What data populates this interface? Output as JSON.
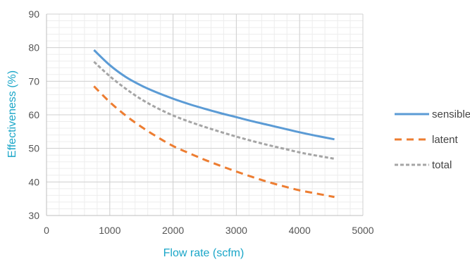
{
  "chart_data": {
    "type": "line",
    "title": "",
    "xlabel": "Flow rate (scfm)",
    "ylabel": "Effectiveness (%)",
    "xlim": [
      0,
      5000
    ],
    "ylim": [
      30,
      90
    ],
    "xticks": [
      0,
      1000,
      2000,
      3000,
      4000,
      5000
    ],
    "yticks": [
      30,
      40,
      50,
      60,
      70,
      80,
      90
    ],
    "x_minor_step": 200,
    "y_minor_step": 2,
    "grid": true,
    "legend_position": "right",
    "axis_title_color": "#1aa6c8",
    "series": [
      {
        "name": "sensible",
        "color": "#5b9bd5",
        "dash": "solid",
        "x": [
          750,
          1000,
          1250,
          1500,
          1750,
          2000,
          2250,
          2500,
          2750,
          3000,
          3250,
          3500,
          3750,
          4000,
          4250,
          4550
        ],
        "values": [
          79.3,
          74.8,
          71.3,
          68.7,
          66.6,
          64.8,
          63.2,
          61.8,
          60.5,
          59.3,
          58.1,
          57.0,
          55.9,
          54.8,
          53.8,
          52.7
        ]
      },
      {
        "name": "latent",
        "color": "#ed7d31",
        "dash": "dashed",
        "x": [
          750,
          1000,
          1250,
          1500,
          1750,
          2000,
          2250,
          2500,
          2750,
          3000,
          3250,
          3500,
          3750,
          4000,
          4250,
          4550
        ],
        "values": [
          68.5,
          63.8,
          59.8,
          56.4,
          53.4,
          50.7,
          48.6,
          46.6,
          44.8,
          43.1,
          41.5,
          40.0,
          38.7,
          37.5,
          36.6,
          35.5
        ]
      },
      {
        "name": "total",
        "color": "#a5a5a5",
        "dash": "dotted",
        "x": [
          750,
          1000,
          1250,
          1500,
          1750,
          2000,
          2250,
          2500,
          2750,
          3000,
          3250,
          3500,
          3750,
          4000,
          4250,
          4550
        ],
        "values": [
          75.8,
          71.5,
          67.8,
          64.6,
          62.0,
          59.8,
          58.0,
          56.4,
          54.9,
          53.5,
          52.2,
          51.0,
          49.9,
          48.8,
          47.9,
          46.9
        ]
      }
    ]
  }
}
